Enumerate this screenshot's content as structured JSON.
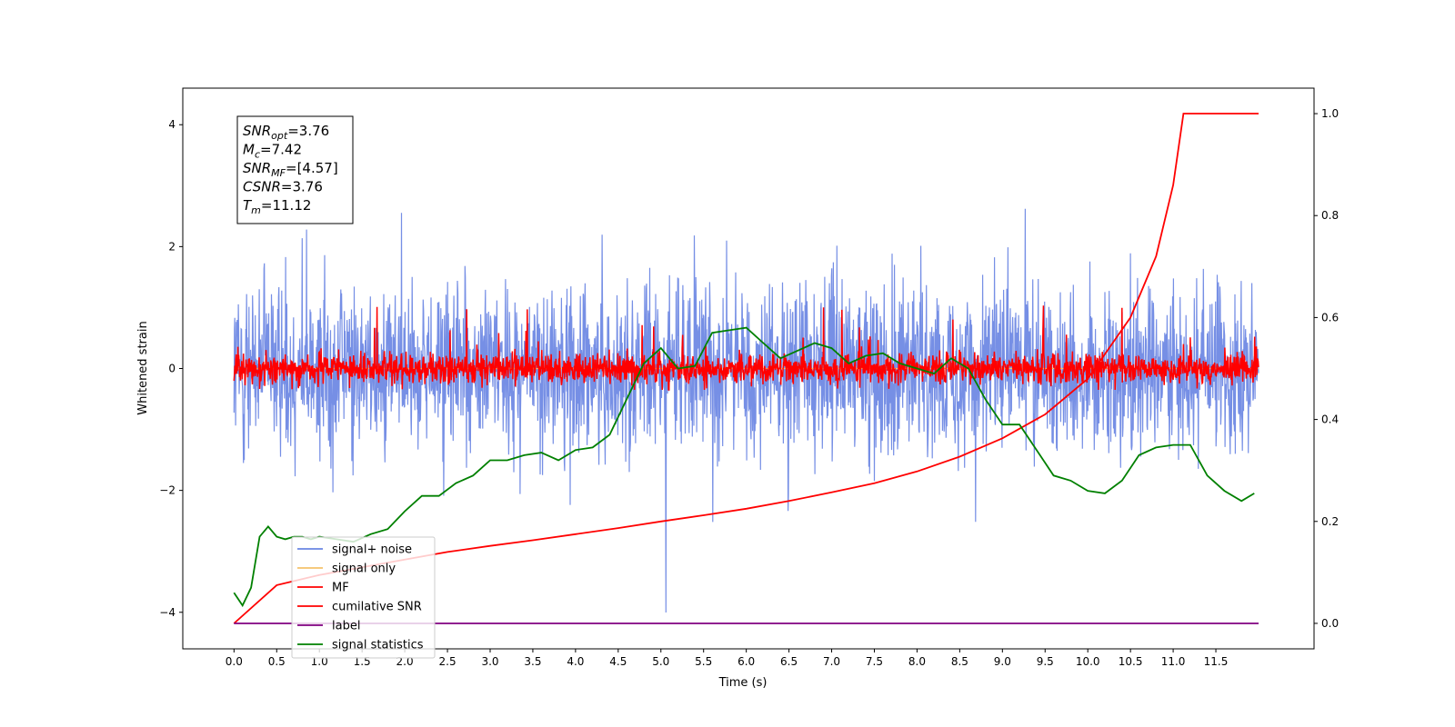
{
  "chart_data": {
    "type": "line",
    "xlabel": "Time (s)",
    "ylabel": "Whitened strain",
    "xlim": [
      -0.6,
      12.65
    ],
    "ylim": [
      -4.6,
      4.6
    ],
    "y2lim": [
      -0.05,
      1.05
    ],
    "grid": false,
    "legend_position": "lower-left",
    "x_ticks": [
      "0.0",
      "0.5",
      "1.0",
      "1.5",
      "2.0",
      "2.5",
      "3.0",
      "3.5",
      "4.0",
      "4.5",
      "5.0",
      "5.5",
      "6.0",
      "6.5",
      "7.0",
      "7.5",
      "8.0",
      "8.5",
      "9.0",
      "9.5",
      "10.0",
      "10.5",
      "11.0",
      "11.5"
    ],
    "y_ticks": [
      "4",
      "2",
      "0",
      "−2",
      "−4"
    ],
    "y2_ticks": [
      "1.0",
      "0.8",
      "0.6",
      "0.4",
      "0.2",
      "0.0"
    ],
    "annotation": [
      {
        "base": "SNR",
        "sub": "opt",
        "value": "=3.76"
      },
      {
        "base": "M",
        "sub": "c",
        "value": "=7.42"
      },
      {
        "base": "SNR",
        "sub": "MF",
        "value": "=[4.57]"
      },
      {
        "base": "CSNR",
        "sub": "",
        "value": "=3.76"
      },
      {
        "base": "T",
        "sub": "m",
        "value": "=11.12"
      }
    ],
    "series": [
      {
        "name": "signal+ noise",
        "axis": "left",
        "color": "#6a86e3",
        "description": "noise band, roughly ±2 with spikes up to ±4",
        "x_range": [
          0.0,
          12.0
        ]
      },
      {
        "name": "signal only",
        "axis": "left",
        "color": "#f5c36b",
        "x_range": [
          0.0,
          12.0
        ]
      },
      {
        "name": "MF",
        "axis": "left",
        "color": "#ff0000",
        "x_range": [
          0.0,
          12.0
        ]
      },
      {
        "name": "cumilative SNR",
        "axis": "right",
        "color": "#ff0000",
        "x": [
          0.0,
          0.5,
          1.0,
          1.5,
          2.0,
          2.5,
          3.0,
          3.5,
          4.0,
          4.5,
          5.0,
          5.5,
          6.0,
          6.5,
          7.0,
          7.5,
          8.0,
          8.5,
          9.0,
          9.5,
          10.0,
          10.5,
          10.8,
          11.0,
          11.12,
          12.0
        ],
        "y": [
          0.0,
          0.075,
          0.095,
          0.11,
          0.125,
          0.14,
          0.152,
          0.163,
          0.175,
          0.187,
          0.2,
          0.212,
          0.225,
          0.24,
          0.257,
          0.275,
          0.298,
          0.327,
          0.363,
          0.41,
          0.48,
          0.6,
          0.72,
          0.86,
          1.0,
          1.0
        ]
      },
      {
        "name": "label",
        "axis": "right",
        "color": "#800080",
        "x": [
          0.0,
          12.0
        ],
        "y": [
          0.0,
          0.0
        ]
      },
      {
        "name": "signal statistics",
        "axis": "right",
        "color": "#008000",
        "x": [
          0.0,
          0.1,
          0.2,
          0.3,
          0.4,
          0.5,
          0.6,
          0.7,
          0.8,
          0.9,
          1.0,
          1.2,
          1.4,
          1.6,
          1.8,
          2.0,
          2.2,
          2.4,
          2.6,
          2.8,
          3.0,
          3.2,
          3.4,
          3.6,
          3.8,
          4.0,
          4.2,
          4.4,
          4.6,
          4.8,
          5.0,
          5.2,
          5.4,
          5.6,
          5.8,
          6.0,
          6.2,
          6.4,
          6.6,
          6.8,
          7.0,
          7.2,
          7.4,
          7.6,
          7.8,
          8.0,
          8.2,
          8.4,
          8.6,
          8.8,
          9.0,
          9.2,
          9.4,
          9.6,
          9.8,
          10.0,
          10.2,
          10.4,
          10.6,
          10.8,
          11.0,
          11.2,
          11.4,
          11.6,
          11.8,
          11.95
        ],
        "y": [
          0.06,
          0.035,
          0.07,
          0.17,
          0.19,
          0.17,
          0.165,
          0.17,
          0.17,
          0.165,
          0.17,
          0.165,
          0.16,
          0.175,
          0.185,
          0.22,
          0.25,
          0.25,
          0.275,
          0.29,
          0.32,
          0.32,
          0.33,
          0.335,
          0.32,
          0.34,
          0.345,
          0.37,
          0.44,
          0.51,
          0.54,
          0.5,
          0.505,
          0.57,
          0.575,
          0.58,
          0.55,
          0.52,
          0.535,
          0.55,
          0.54,
          0.51,
          0.525,
          0.53,
          0.51,
          0.5,
          0.49,
          0.52,
          0.5,
          0.44,
          0.39,
          0.39,
          0.34,
          0.29,
          0.28,
          0.26,
          0.255,
          0.28,
          0.33,
          0.345,
          0.35,
          0.35,
          0.29,
          0.26,
          0.24,
          0.255
        ]
      }
    ]
  }
}
